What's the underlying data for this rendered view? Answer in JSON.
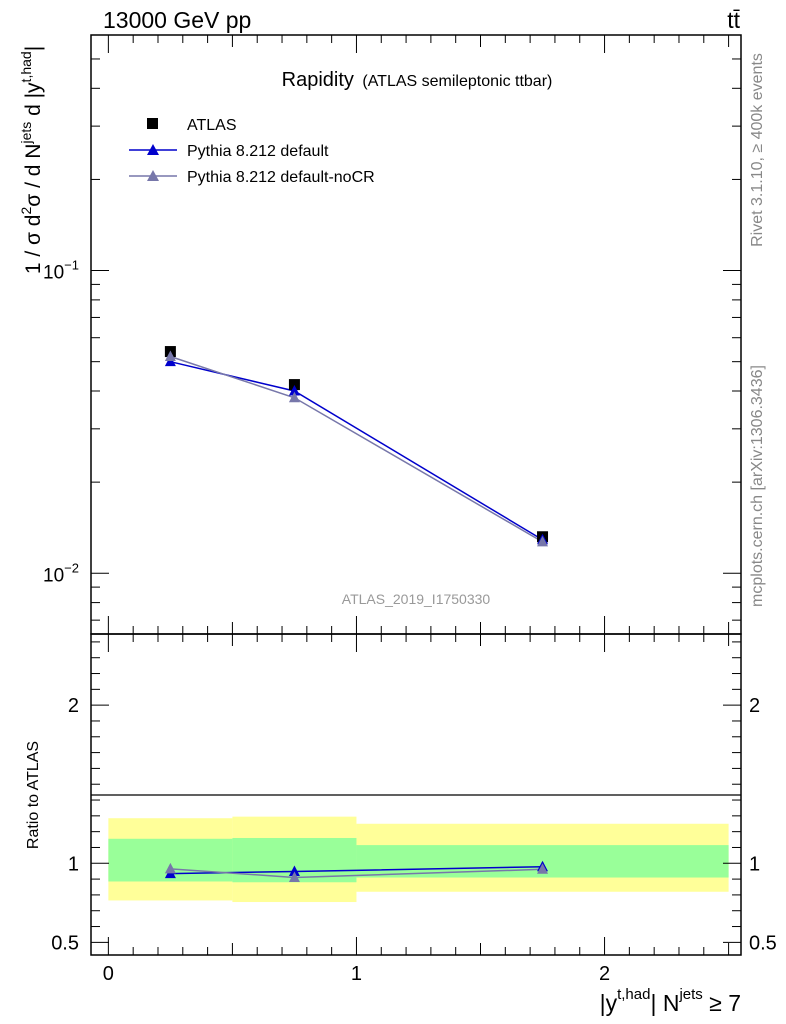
{
  "header": {
    "left": "13000 GeV pp",
    "right": "tt̄"
  },
  "side_labels": {
    "rivet": "Rivet 3.1.10, ≥ 400k events",
    "mcplots": "mcplots.cern.ch [arXiv:1306.3436]"
  },
  "main_title": {
    "main": "Rapidity",
    "sub": "(ATLAS semileptonic ttbar)"
  },
  "watermark": "ATLAS_2019_I1750330",
  "legend": [
    {
      "label": "ATLAS",
      "marker": "square",
      "color": "#000000"
    },
    {
      "label": "Pythia 8.212 default",
      "marker": "triangle",
      "color": "#0000cc"
    },
    {
      "label": "Pythia 8.212 default-noCR",
      "marker": "triangle",
      "color": "#7777aa"
    }
  ],
  "y_axis_label": {
    "part1": "1 / σ d",
    "sup1": "2",
    "part2": "σ / d N",
    "sup2": "jets",
    "part3": " d |y",
    "sup3": "t,had",
    "part4": "|"
  },
  "ratio_label": "Ratio to ATLAS",
  "x_axis_label": {
    "part1": "|y",
    "sup1": "t,had",
    "part2": "| N",
    "sup2": "jets",
    "part3": " ≥ 7"
  },
  "chart_data": [
    {
      "type": "scatter",
      "panel": "main",
      "yscale": "log",
      "xlim": [
        -0.07,
        2.55
      ],
      "ylim": [
        0.0063,
        0.6
      ],
      "yticks": [
        {
          "value": 0.1,
          "base": "10",
          "exp": "−1"
        },
        {
          "value": 0.01,
          "base": "10",
          "exp": "−2"
        }
      ],
      "bin_edges": [
        0,
        0.5,
        1.0,
        2.5
      ],
      "series": [
        {
          "name": "ATLAS",
          "x": [
            0.25,
            0.75,
            1.75
          ],
          "y": [
            0.054,
            0.042,
            0.0132
          ]
        },
        {
          "name": "Pythia 8.212 default",
          "x": [
            0.25,
            0.75,
            1.75
          ],
          "y": [
            0.05,
            0.04,
            0.0129
          ]
        },
        {
          "name": "Pythia 8.212 default-noCR",
          "x": [
            0.25,
            0.75,
            1.75
          ],
          "y": [
            0.052,
            0.038,
            0.0127
          ]
        }
      ]
    },
    {
      "type": "scatter",
      "panel": "ratio",
      "xlim": [
        -0.07,
        2.55
      ],
      "ylim": [
        0.42,
        2.45
      ],
      "yticks": [
        {
          "value": 0.5,
          "label": "0.5"
        },
        {
          "value": 1,
          "label": "1"
        },
        {
          "value": 2,
          "label": "2"
        }
      ],
      "xticks": [
        {
          "value": 0,
          "label": "0"
        },
        {
          "value": 1,
          "label": "1"
        },
        {
          "value": 2,
          "label": "2"
        }
      ],
      "bands": [
        {
          "x0": 0,
          "x1": 0.5,
          "outer": [
            0.765,
            1.285
          ],
          "inner": [
            0.885,
            1.155
          ]
        },
        {
          "x0": 0.5,
          "x1": 1.0,
          "outer": [
            0.755,
            1.295
          ],
          "inner": [
            0.88,
            1.16
          ]
        },
        {
          "x0": 1.0,
          "x1": 2.5,
          "outer": [
            0.82,
            1.25
          ],
          "inner": [
            0.91,
            1.115
          ]
        }
      ],
      "series": [
        {
          "name": "Pythia 8.212 default",
          "x": [
            0.25,
            0.75,
            1.75
          ],
          "y": [
            0.935,
            0.948,
            0.978
          ],
          "err": [
            0.015,
            0.022,
            0.03
          ]
        },
        {
          "name": "Pythia 8.212 default-noCR",
          "x": [
            0.25,
            0.75,
            1.75
          ],
          "y": [
            0.965,
            0.91,
            0.962
          ],
          "err": [
            0.015,
            0.02,
            0.025
          ]
        }
      ]
    }
  ],
  "colors": {
    "atlas": "#000000",
    "default": "#0000cc",
    "noCR": "#7777aa",
    "band_outer": "#ffff99",
    "band_inner": "#99ff99"
  }
}
